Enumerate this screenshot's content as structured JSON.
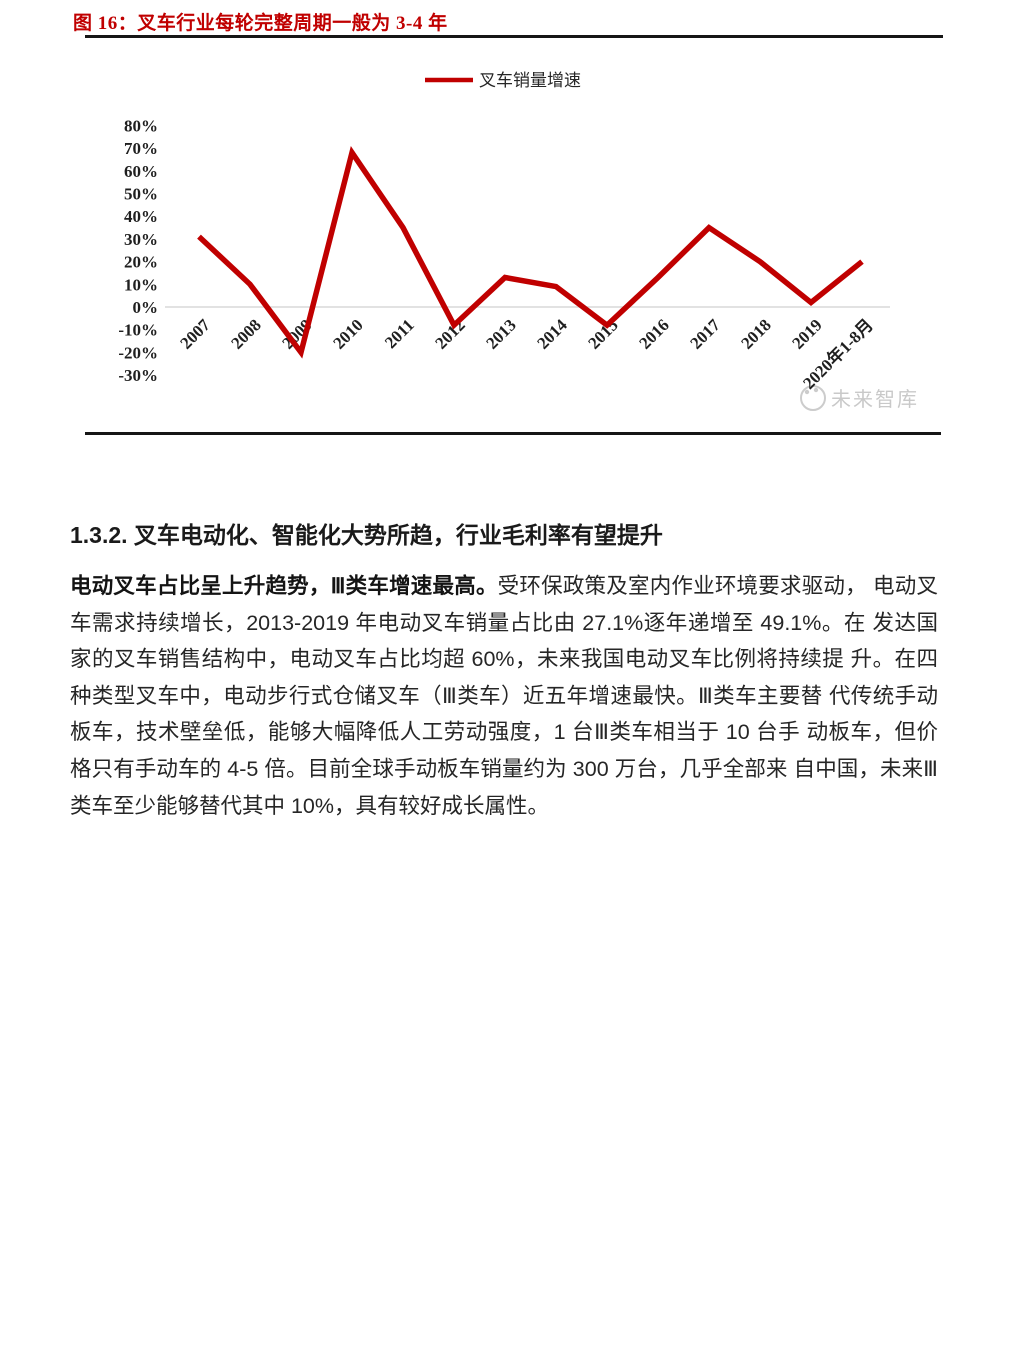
{
  "figure": {
    "title": "图 16：叉车行业每轮完整周期一般为 3-4 年",
    "watermark": "未来智库"
  },
  "chart_data": {
    "type": "line",
    "title": "",
    "legend": [
      "叉车销量增速"
    ],
    "legend_position": "top-center",
    "categories": [
      "2007",
      "2008",
      "2009",
      "2010",
      "2011",
      "2012",
      "2013",
      "2014",
      "2015",
      "2016",
      "2017",
      "2018",
      "2019",
      "2020年1-8月"
    ],
    "values": [
      31,
      10,
      -20,
      68,
      35,
      -8,
      13,
      9,
      -8,
      13,
      35,
      20,
      2,
      20
    ],
    "unit": "%",
    "yticks": [
      80,
      70,
      60,
      50,
      40,
      30,
      20,
      10,
      0,
      -10,
      -20,
      -30
    ],
    "ylim": [
      -30,
      80
    ],
    "grid": "zero-line-only",
    "xtick_rotation": -45,
    "series_color": "#c00000",
    "grid_color": "#d9d9d9"
  },
  "section": {
    "heading": "1.3.2. 叉车电动化、智能化大势所趋，行业毛利率有望提升",
    "lead_bold": "电动叉车占比呈上升趋势，Ⅲ类车增速最高。",
    "body": "受环保政策及室内作业环境要求驱动， 电动叉车需求持续增长，2013-2019 年电动叉车销量占比由 27.1%逐年递增至 49.1%。在 发达国家的叉车销售结构中，电动叉车占比均超 60%，未来我国电动叉车比例将持续提 升。在四种类型叉车中，电动步行式仓储叉车（Ⅲ类车）近五年增速最快。Ⅲ类车主要替 代传统手动板车，技术壁垒低，能够大幅降低人工劳动强度，1 台Ⅲ类车相当于 10 台手 动板车，但价格只有手动车的 4-5 倍。目前全球手动板车销量约为 300 万台，几乎全部来 自中国，未来Ⅲ类车至少能够替代其中 10%，具有较好成长属性。"
  }
}
